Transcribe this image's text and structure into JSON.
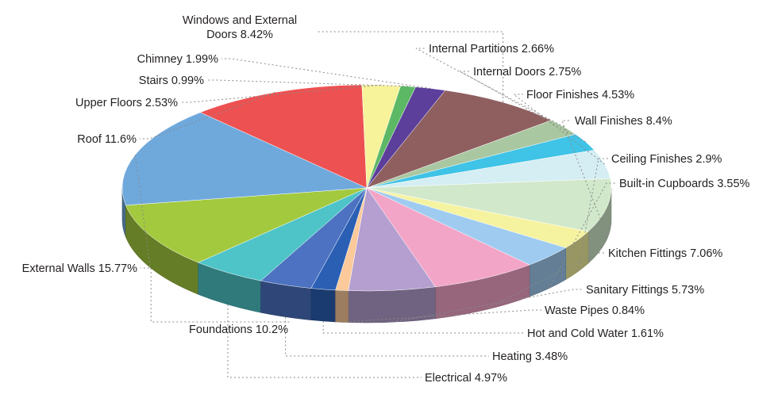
{
  "chart_data": {
    "type": "pie",
    "title": "",
    "legend": "none",
    "slices": [
      {
        "label": "Windows and External Doors 8.42%",
        "value": 8.42,
        "color": "#8f5f60"
      },
      {
        "label": "Internal Partitions 2.66%",
        "value": 2.66,
        "color": "#a9c7a1"
      },
      {
        "label": "Internal Doors 2.75%",
        "value": 2.75,
        "color": "#3fc3e6"
      },
      {
        "label": "Floor Finishes 4.53%",
        "value": 4.53,
        "color": "#d5eef3"
      },
      {
        "label": "Wall Finishes 8.4%",
        "value": 8.4,
        "color": "#d1e8cb"
      },
      {
        "label": "Ceiling Finishes 2.9%",
        "value": 2.9,
        "color": "#f5f3a0"
      },
      {
        "label": "Built-in Cupboards 3.55%",
        "value": 3.55,
        "color": "#9fcbf0"
      },
      {
        "label": "Kitchen Fittings 7.06%",
        "value": 7.06,
        "color": "#f3a5c8"
      },
      {
        "label": "Sanitary Fittings 5.73%",
        "value": 5.73,
        "color": "#b49fd0"
      },
      {
        "label": "Waste Pipes 0.84%",
        "value": 0.84,
        "color": "#fbc99a"
      },
      {
        "label": "Hot and Cold Water 1.61%",
        "value": 1.61,
        "color": "#2a5fb4"
      },
      {
        "label": "Heating 3.48%",
        "value": 3.48,
        "color": "#4c72c1"
      },
      {
        "label": "Electrical 4.97%",
        "value": 4.97,
        "color": "#4ec4c8"
      },
      {
        "label": "Foundations 10.2%",
        "value": 10.2,
        "color": "#a3c93e"
      },
      {
        "label": "External Walls 15.77%",
        "value": 15.77,
        "color": "#6fa9dc"
      },
      {
        "label": "Roof 11.6%",
        "value": 11.6,
        "color": "#ed5151"
      },
      {
        "label": "Upper Floors 2.53%",
        "value": 2.53,
        "color": "#f7f39a"
      },
      {
        "label": "Stairs 0.99%",
        "value": 0.99,
        "color": "#5cb865"
      },
      {
        "label": "Chimney 1.99%",
        "value": 1.99,
        "color": "#5b3f9b"
      }
    ]
  }
}
